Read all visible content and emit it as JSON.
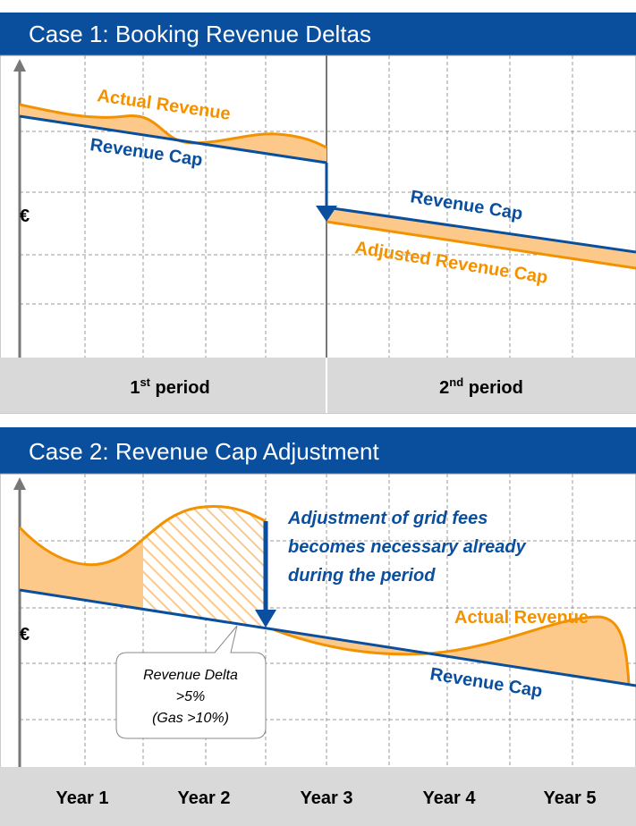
{
  "panel1": {
    "title": "Case 1: Booking Revenue Deltas",
    "axis_label": "€",
    "labels": {
      "actual": "Actual Revenue",
      "cap": "Revenue Cap",
      "cap2": "Revenue Cap",
      "adjusted": "Adjusted Revenue Cap"
    },
    "periods": [
      {
        "num": "1",
        "sup": "st",
        "text": " period"
      },
      {
        "num": "2",
        "sup": "nd",
        "text": " period"
      }
    ]
  },
  "panel2": {
    "title": "Case 2: Revenue Cap Adjustment",
    "axis_label": "€",
    "note": [
      "Adjustment of grid fees",
      "becomes necessary already",
      "during the period"
    ],
    "callout": [
      "Revenue Delta",
      ">5%",
      "(Gas >10%)"
    ],
    "labels": {
      "actual": "Actual Revenue",
      "cap": "Revenue Cap"
    },
    "years": [
      "Year 1",
      "Year 2",
      "Year 3",
      "Year 4",
      "Year 5"
    ]
  }
}
